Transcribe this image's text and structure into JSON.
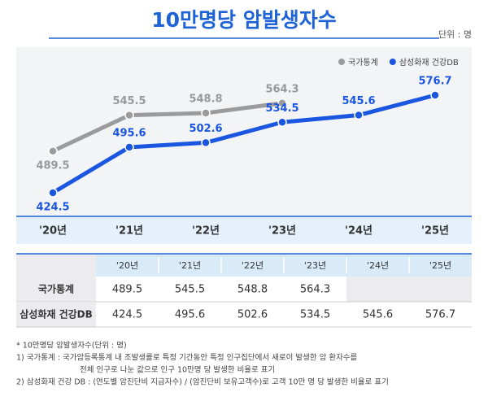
{
  "chart_data": {
    "type": "line",
    "title": "10만명당 암발생자수",
    "unit": "단위 : 명",
    "categories": [
      "'20년",
      "'21년",
      "'22년",
      "'23년",
      "'24년",
      "'25년"
    ],
    "series": [
      {
        "name": "국가통계",
        "color": "#9b9b9b",
        "values": [
          489.5,
          545.5,
          548.8,
          564.3,
          null,
          null
        ]
      },
      {
        "name": "삼성화재 건강DB",
        "color": "#1a56e0",
        "values": [
          424.5,
          495.6,
          502.6,
          534.5,
          545.6,
          576.7
        ]
      }
    ],
    "legend": "top-right"
  },
  "table": {
    "header": [
      "'20년",
      "'21년",
      "'22년",
      "'23년",
      "'24년",
      "'25년"
    ],
    "rows": [
      {
        "label": "국가통계",
        "cells": [
          489.5,
          545.5,
          548.8,
          564.3,
          null,
          null
        ]
      },
      {
        "label": "삼성화재 건강DB",
        "cells": [
          424.5,
          495.6,
          502.6,
          534.5,
          545.6,
          576.7
        ]
      }
    ]
  },
  "notes": [
    "* 10만명당 암발생자수(단위 : 명)",
    "1) 국가통계 : 국가암등록통계 내 조발생률로 특정 기간동안 특정 인구집단에서 새로이 발생한 암 환자수를",
    "전체 인구로 나눈 값으로 인구 10만명 당 발생한 비율로 표기",
    "2) 삼성화재 건강 DB : (연도별 암진단비 지급자수) / (암진단비 보유고객수)로 고객 10만 명 당 발생한 비율로 표기"
  ]
}
